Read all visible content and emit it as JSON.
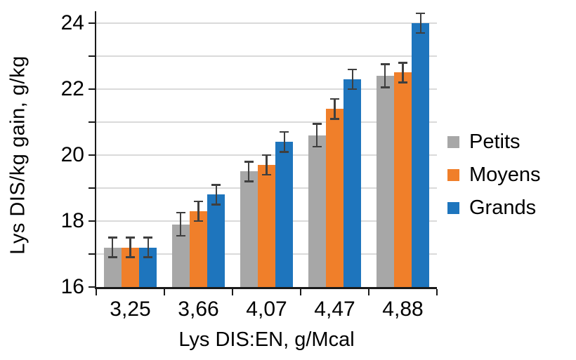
{
  "chart_data": {
    "type": "bar",
    "title": "",
    "xlabel": "Lys DIS:EN, g/Mcal",
    "ylabel": "Lys DIS/kg gain, g/kg",
    "categories": [
      "3,25",
      "3,66",
      "4,07",
      "4,47",
      "4,88"
    ],
    "series": [
      {
        "name": "Petits",
        "color": "#A7A7A7",
        "values": [
          17.2,
          17.9,
          19.5,
          20.6,
          22.4
        ],
        "errors": [
          0.3,
          0.35,
          0.3,
          0.35,
          0.35
        ]
      },
      {
        "name": "Moyens",
        "color": "#F07F2A",
        "values": [
          17.2,
          18.3,
          19.7,
          21.4,
          22.5
        ],
        "errors": [
          0.3,
          0.3,
          0.3,
          0.3,
          0.3
        ]
      },
      {
        "name": "Grands",
        "color": "#1E75BD",
        "values": [
          17.2,
          18.8,
          20.4,
          22.3,
          24.0
        ],
        "errors": [
          0.3,
          0.3,
          0.3,
          0.3,
          0.3
        ]
      }
    ],
    "ylim": [
      16,
      24.34
    ],
    "yticks": [
      16,
      17,
      18,
      19,
      20,
      21,
      22,
      23,
      24
    ],
    "ytick_labeled": [
      16,
      18,
      20,
      22,
      24
    ],
    "grid": true,
    "legend_position": "right",
    "colors": {
      "axis": "#1A1A1A",
      "gridline": "#DADADA",
      "error_bar": "#3F3F3F",
      "text": "#000000",
      "background": "#FFFFFF"
    }
  }
}
